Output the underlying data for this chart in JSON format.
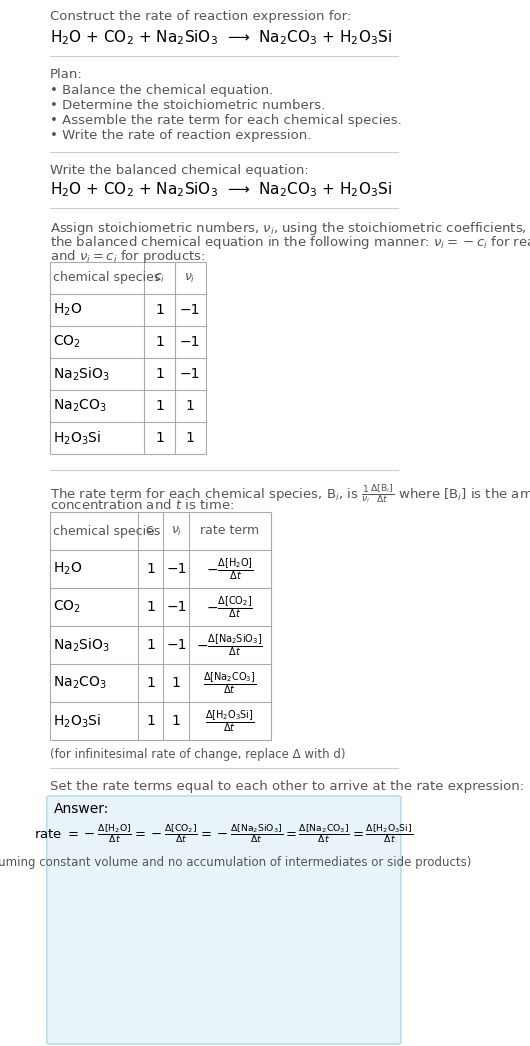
{
  "bg_color": "#ffffff",
  "text_color": "#000000",
  "section1_title": "Construct the rate of reaction expression for:",
  "reaction_eq": "H$_2$O + CO$_2$ + Na$_2$SiO$_3$  ⟶  Na$_2$CO$_3$ + H$_2$O$_3$Si",
  "plan_title": "Plan:",
  "plan_items": [
    "• Balance the chemical equation.",
    "• Determine the stoichiometric numbers.",
    "• Assemble the rate term for each chemical species.",
    "• Write the rate of reaction expression."
  ],
  "balanced_label": "Write the balanced chemical equation:",
  "balanced_eq": "H$_2$O + CO$_2$ + Na$_2$SiO$_3$  ⟶  Na$_2$CO$_3$ + H$_2$O$_3$Si",
  "assign_text1": "Assign stoichiometric numbers, $\\nu_i$, using the stoichiometric coefficients, $c_i$, from",
  "assign_text2": "the balanced chemical equation in the following manner: $\\nu_i = -c_i$ for reactants",
  "assign_text3": "and $\\nu_i = c_i$ for products:",
  "table1_headers": [
    "chemical species",
    "$c_i$",
    "$\\nu_i$"
  ],
  "table1_rows": [
    [
      "H$_2$O",
      "1",
      "−1"
    ],
    [
      "CO$_2$",
      "1",
      "−1"
    ],
    [
      "Na$_2$SiO$_3$",
      "1",
      "−1"
    ],
    [
      "Na$_2$CO$_3$",
      "1",
      "1"
    ],
    [
      "H$_2$O$_3$Si",
      "1",
      "1"
    ]
  ],
  "rate_term_text1": "The rate term for each chemical species, B$_i$, is $\\frac{1}{\\nu_i}\\frac{\\Delta[\\mathrm{B}_i]}{\\Delta t}$ where [B$_i$] is the amount",
  "rate_term_text2": "concentration and $t$ is time:",
  "table2_headers": [
    "chemical species",
    "$c_i$",
    "$\\nu_i$",
    "rate term"
  ],
  "table2_rows": [
    [
      "H$_2$O",
      "1",
      "−1",
      "$-\\frac{\\Delta[\\mathrm{H_2O}]}{\\Delta t}$"
    ],
    [
      "CO$_2$",
      "1",
      "−1",
      "$-\\frac{\\Delta[\\mathrm{CO_2}]}{\\Delta t}$"
    ],
    [
      "Na$_2$SiO$_3$",
      "1",
      "−1",
      "$-\\frac{\\Delta[\\mathrm{Na_2SiO_3}]}{\\Delta t}$"
    ],
    [
      "Na$_2$CO$_3$",
      "1",
      "1",
      "$\\frac{\\Delta[\\mathrm{Na_2CO_3}]}{\\Delta t}$"
    ],
    [
      "H$_2$O$_3$Si",
      "1",
      "1",
      "$\\frac{\\Delta[\\mathrm{H_2O_3Si}]}{\\Delta t}$"
    ]
  ],
  "infinitesimal_note": "(for infinitesimal rate of change, replace Δ with d)",
  "set_equal_text": "Set the rate terms equal to each other to arrive at the rate expression:",
  "answer_box_color": "#e8f4f8",
  "answer_label": "Answer:",
  "rate_expr": "rate $= -\\frac{\\Delta[\\mathrm{H_2O}]}{\\Delta t} = -\\frac{\\Delta[\\mathrm{CO_2}]}{\\Delta t} = -\\frac{\\Delta[\\mathrm{Na_2SiO_3}]}{\\Delta t} = \\frac{\\Delta[\\mathrm{Na_2CO_3}]}{\\Delta t} = \\frac{\\Delta[\\mathrm{H_2O_3Si}]}{\\Delta t}$",
  "assuming_note": "(assuming constant volume and no accumulation of intermediates or side products)"
}
